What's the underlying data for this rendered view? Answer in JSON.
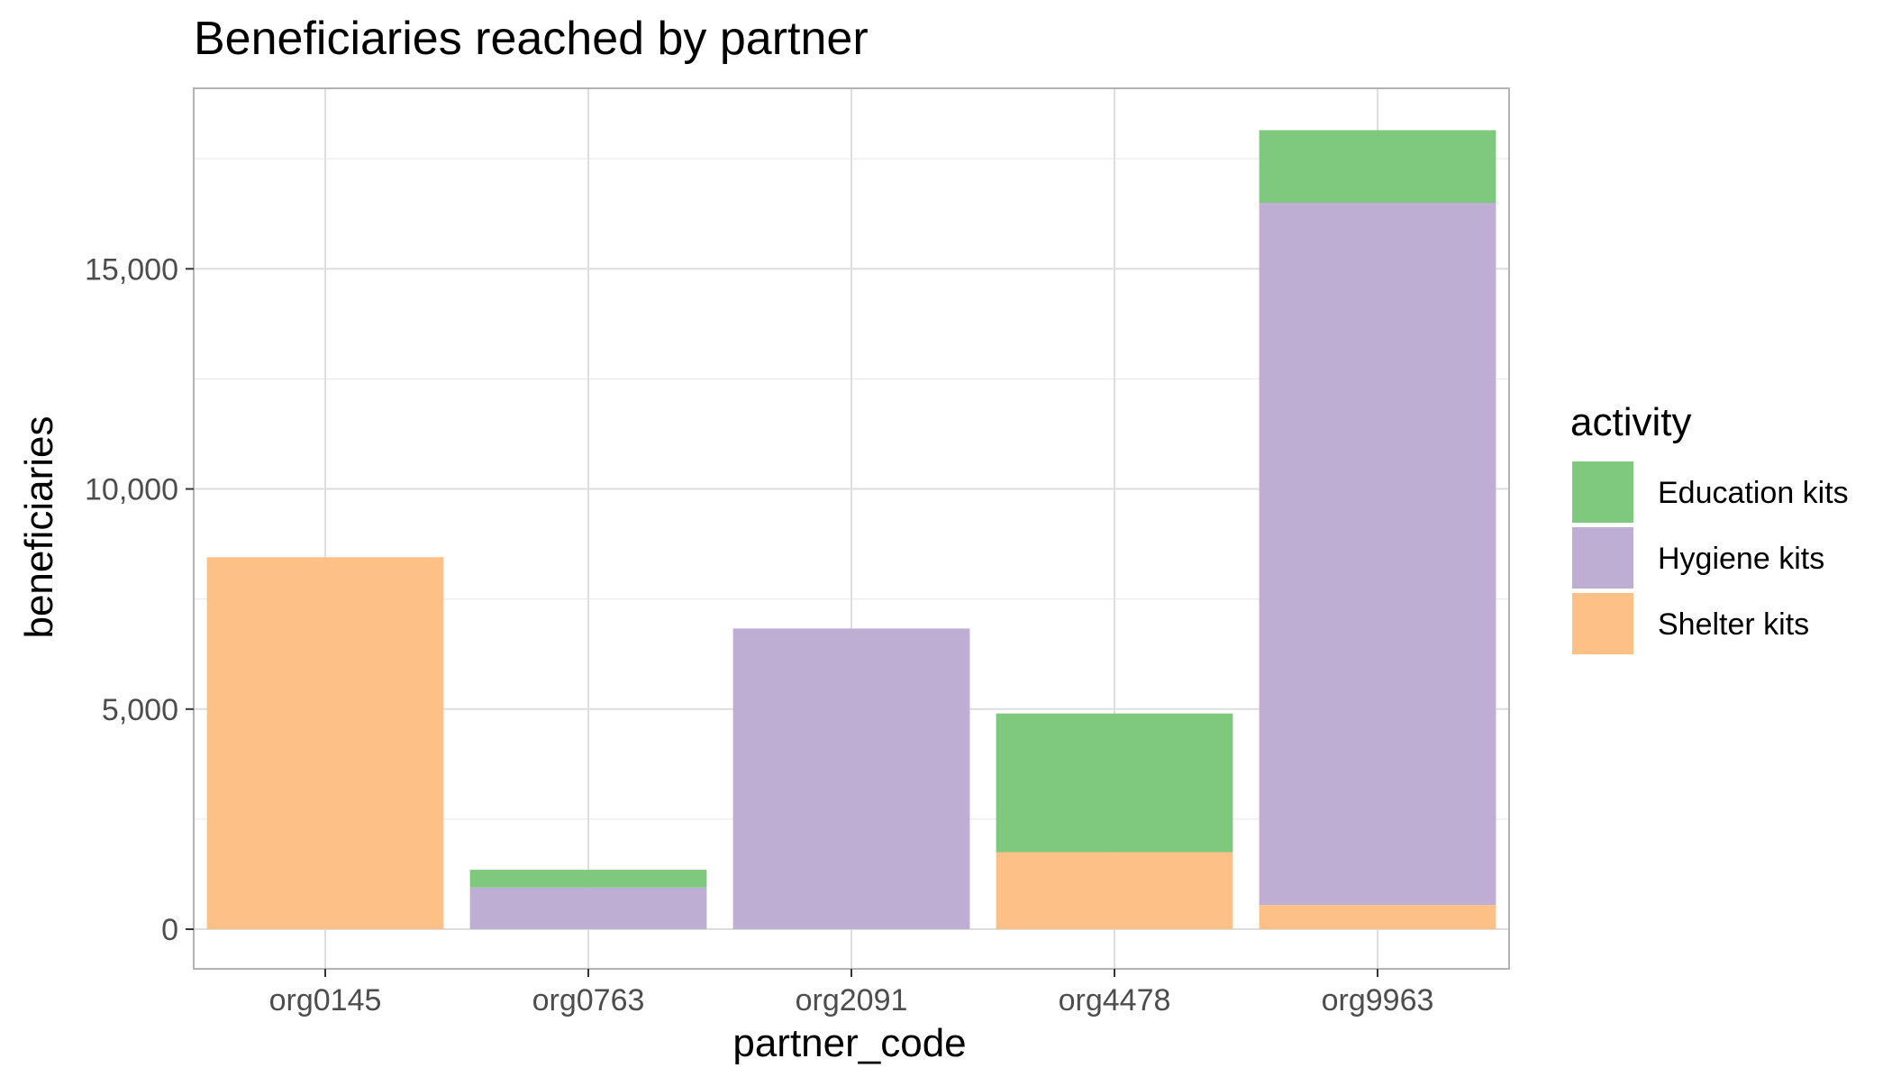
{
  "chart_data": {
    "type": "bar",
    "stacked": true,
    "title": "Beneficiaries reached by partner",
    "xlabel": "partner_code",
    "ylabel": "beneficiaries",
    "categories": [
      "org0145",
      "org0763",
      "org2091",
      "org4478",
      "org9963"
    ],
    "series": [
      {
        "name": "Shelter kits",
        "color": "#FDC086",
        "values": [
          8450,
          0,
          0,
          1750,
          550
        ]
      },
      {
        "name": "Hygiene kits",
        "color": "#BEAED4",
        "values": [
          0,
          950,
          6830,
          0,
          15950
        ]
      },
      {
        "name": "Education kits",
        "color": "#7FC97F",
        "values": [
          0,
          400,
          0,
          3150,
          1650
        ]
      }
    ],
    "ylim": [
      -900,
      19100
    ],
    "yticks": [
      0,
      5000,
      10000,
      15000
    ],
    "ytick_labels": [
      "0",
      "5,000",
      "10,000",
      "15,000"
    ],
    "grid": true,
    "legend": {
      "title": "activity",
      "position": "right",
      "items": [
        {
          "label": "Education kits",
          "color": "#7FC97F"
        },
        {
          "label": "Hygiene kits",
          "color": "#BEAED4"
        },
        {
          "label": "Shelter kits",
          "color": "#FDC086"
        }
      ]
    }
  }
}
